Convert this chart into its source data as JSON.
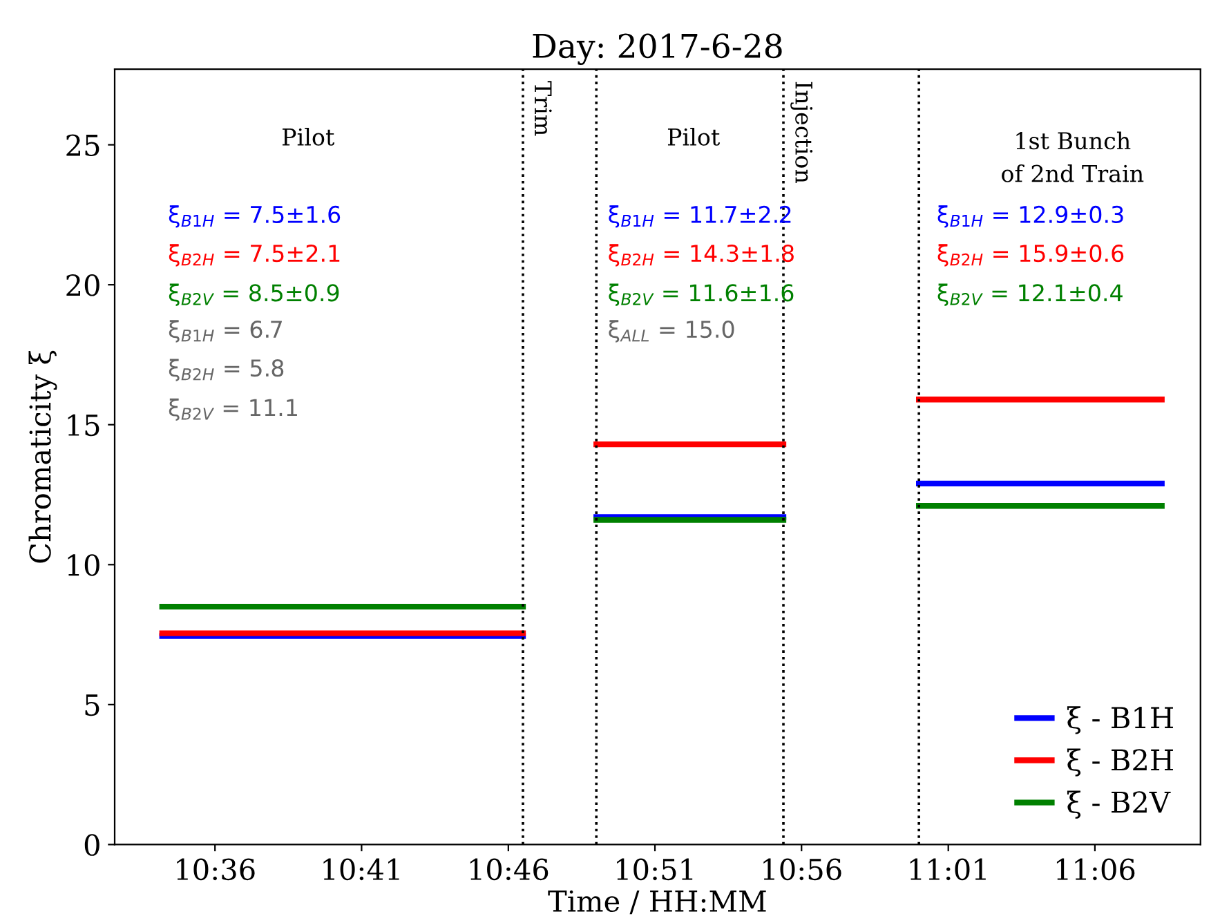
{
  "chart_data": {
    "type": "line",
    "title": "Day: 2017-6-28",
    "xlabel": "Time / HH:MM",
    "ylabel": "Chromaticity ξ",
    "xlim": [
      10.543,
      11.16
    ],
    "ylim": [
      0,
      27.7
    ],
    "xticks": [
      {
        "value": 10.6,
        "label": "10:36"
      },
      {
        "value": 10.6833,
        "label": "10:41"
      },
      {
        "value": 10.7667,
        "label": "10:46"
      },
      {
        "value": 10.85,
        "label": "10:51"
      },
      {
        "value": 10.9333,
        "label": "10:56"
      },
      {
        "value": 11.0167,
        "label": "11:01"
      },
      {
        "value": 11.1,
        "label": "11:06"
      }
    ],
    "yticks": [
      0,
      5,
      10,
      15,
      20,
      25
    ],
    "x": [
      10.57,
      10.775,
      10.79,
      10.8167,
      10.923,
      10.96,
      11.0,
      11.138
    ],
    "series": [
      {
        "name": "ξ - B1H",
        "color": "#0000ff",
        "values": [
          7.45,
          7.45,
          null,
          11.7,
          11.7,
          null,
          12.9,
          12.9
        ]
      },
      {
        "name": "ξ - B2H",
        "color": "#ff0000",
        "values": [
          7.55,
          7.55,
          null,
          14.3,
          14.3,
          null,
          15.9,
          15.9
        ]
      },
      {
        "name": "ξ - B2V",
        "color": "#008000",
        "values": [
          8.5,
          8.5,
          null,
          11.6,
          11.6,
          null,
          12.1,
          12.1
        ]
      }
    ],
    "ref_lines": [
      {
        "axis": "x",
        "value": 10.775,
        "label": "Trim",
        "line_style": "dotted",
        "color": "#000000"
      },
      {
        "axis": "x",
        "value": 10.8167,
        "label": null,
        "line_style": "dotted",
        "color": "#000000"
      },
      {
        "axis": "x",
        "value": 10.923,
        "label": "Injection",
        "line_style": "dotted",
        "color": "#000000"
      },
      {
        "axis": "x",
        "value": 11.0,
        "label": null,
        "line_style": "dotted",
        "color": "#000000"
      }
    ],
    "annotations": [
      "Pilot",
      "Pilot",
      "1st Bunch\nof 2nd Train",
      "ξ̄$_{B1H}$ = 7.5±1.6",
      "ξ̄$_{B2H}$ = 7.5±2.1",
      "ξ̄$_{B2V}$ = 8.5±0.9",
      "ξ$_{B1H}$ = 6.7",
      "ξ$_{B2H}$ = 5.8",
      "ξ$_{B2V}$ = 11.1",
      "ξ̄$_{B1H}$ = 11.7±2.2",
      "ξ̄$_{B2H}$ = 14.3±1.8",
      "ξ̄$_{B2V}$ = 11.6±1.6",
      "ξ$_{ALL}$ = 15.0",
      "ξ̄$_{B1H}$ = 12.9±0.3",
      "ξ̄$_{B2H}$ = 15.9±0.6",
      "ξ̄$_{B2V}$ = 12.1±0.4"
    ],
    "legend": "bottom right",
    "grid": false,
    "marker": "none",
    "line_style": "solid"
  }
}
